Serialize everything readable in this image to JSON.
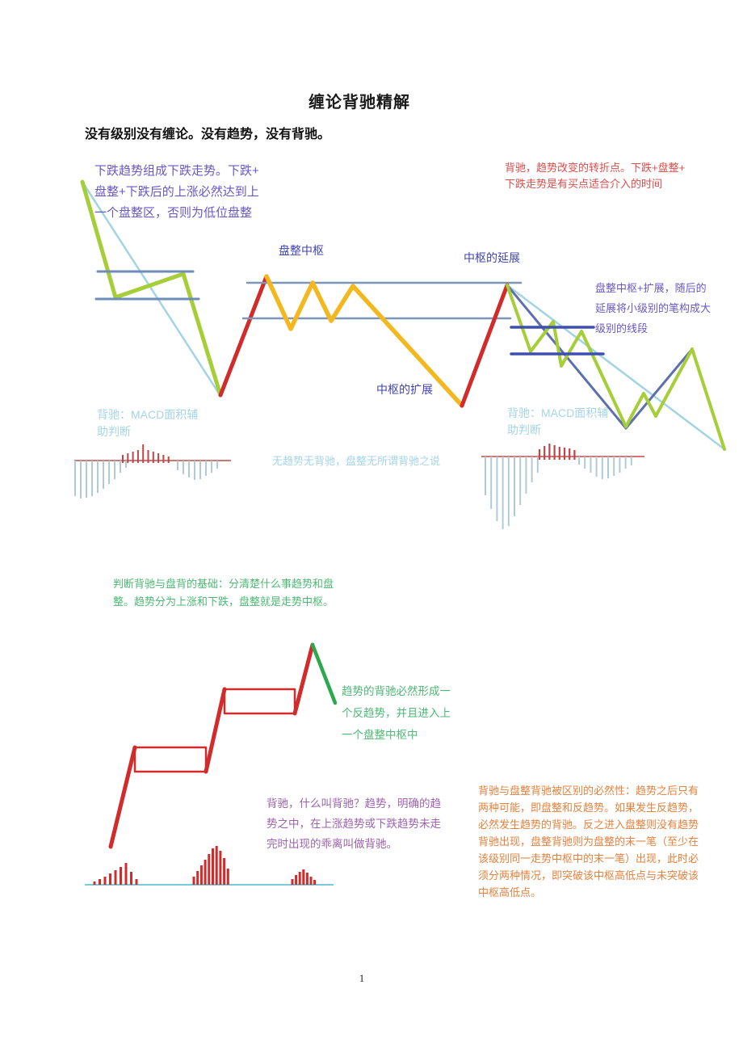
{
  "page": {
    "title": "缠论背驰精解",
    "subtitle": "没有级别没有缠论。没有趋势，没有背驰。",
    "page_number": "1"
  },
  "top_diagram": {
    "notes": {
      "downtrend": "下跌趋势组成下跌走势。下跌+\n盘整+下跌后的上涨必然达到上\n一个盘整区，否则为低位盘整",
      "divergence": "背驰，趋势改变的转折点。下跌+盘整+\n下跌走势是有买点适合介入的时间",
      "pivot_label": "盘整中枢",
      "extension_label": "中枢的延展",
      "expansion_label": "中枢的扩展",
      "expansion": "盘整中枢+扩展，随后的\n延展将小级别的笔构成大\n级别的线段",
      "macd_left": "背驰：MACD面积辅\n助判断",
      "macd_right": "背驰：MACD面积辅\n助判断",
      "no_trend": "无趋势无背驰，盘整无所谓背驰之说"
    }
  },
  "bottom_diagram": {
    "notes": {
      "basis": "判断背驰与盘背的基础：分清楚什么事趋势和盘\n整。趋势分为上涨和下跌，盘整就是走势中枢。",
      "trend_divergence": "趋势的背驰必然形成一\n个反趋势，并且进入上\n一个盘整中枢中",
      "definition": "背驰，什么叫背驰？趋势，明确的趋\n势之中，在上涨趋势或下跌趋势未走\n完时出现的乖离叫做背驰。",
      "distinction": "背驰与盘整背驰被区别的必然性：趋势之后只有\n两种可能，即盘整和反趋势。如果发生反趋势，\n必然发生趋势的背驰。反之进入盘整则没有趋势\n背驰出现，盘整背驰则为盘整的末一笔（至少在\n该级别同一走势中枢中的末一笔）出现，此时必\n须分两种情况，即突破该中枢高低点与未突破该\n中枢高低点。"
    }
  },
  "palette": {
    "purple_note": "#6A57C6",
    "blue_label": "#4145B2",
    "red_note": "#E04B4B",
    "cyan_note": "#A5D5E6",
    "green_note": "#4DB874",
    "violet_note": "#9D62AE",
    "orange_note": "#E5823E",
    "chart_green": "#A5CE39",
    "chart_yellow": "#F3B81F",
    "chart_red": "#D22B2B",
    "chart_cyan": "#A3D4E4",
    "chart_steel_blue": "#6E8CB8",
    "chart_navy": "#3E4FB0",
    "chart_slate": "#5E6FAE",
    "macd_blue": "#AFCBD8",
    "macd_red": "#C24444",
    "macd_axis_red": "#C04848",
    "hist_axis_cyan": "#4ABCCB",
    "trend_green_down": "#2CA84F"
  }
}
